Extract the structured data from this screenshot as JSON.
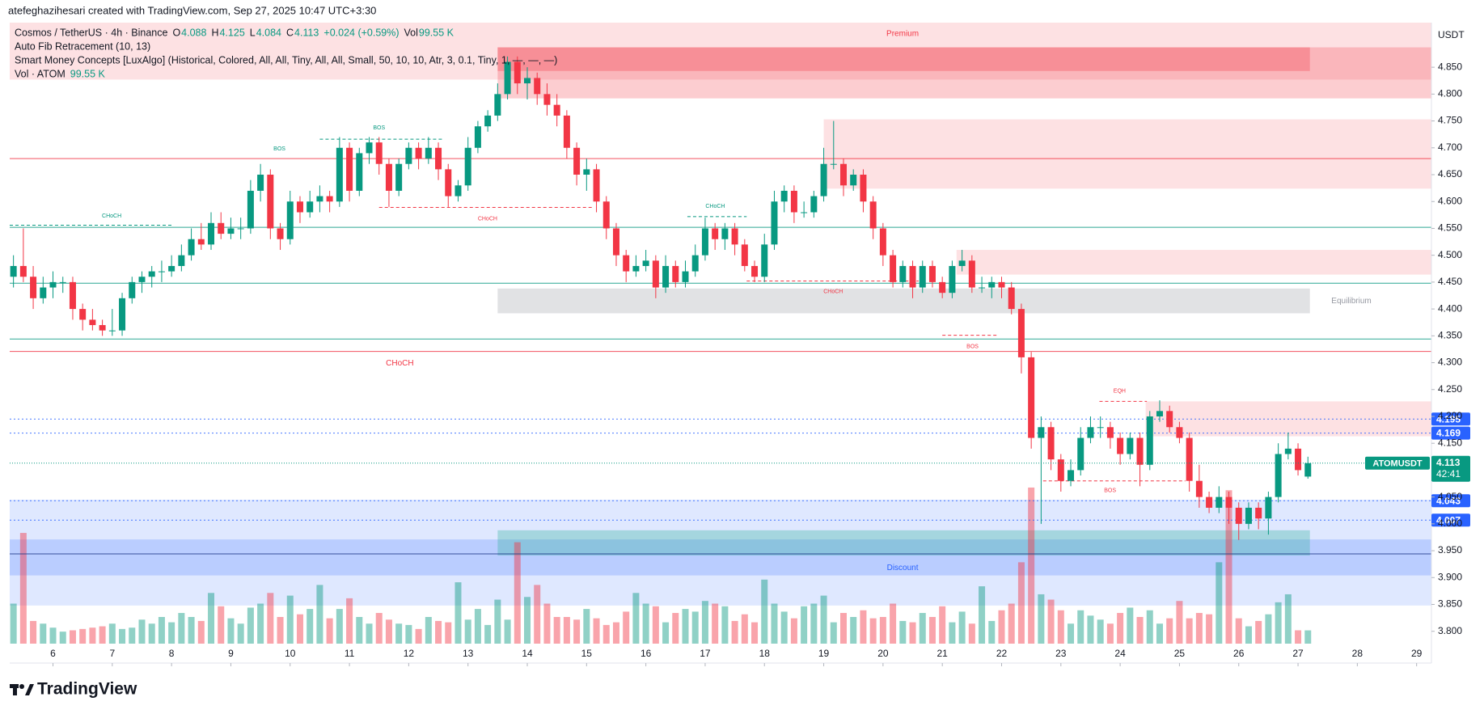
{
  "chart_data": {
    "type": "candlestick",
    "creator": "atefeghazihesari created with TradingView.com, Sep 27, 2025 10:47 UTC+3:30",
    "symbol_title": "Cosmos / TetherUS · 4h · Binance",
    "legend": {
      "o": "O",
      "h": "H",
      "l": "L",
      "c": "C",
      "change": "+0.024 (+0.59%)",
      "vol": "Vol",
      "vol_value": "99.55 K",
      "fib": "Auto Fib Retracement (10, 13)",
      "smc": "Smart Money Concepts [LuxAlgo] (Historical, Colored, All, All, Tiny, All, All, Small, 50, 10, 10, Atr, 3, 0.1, Tiny, 1, —, —, —)",
      "vol_title": "Vol · ATOM"
    },
    "currency": "USDT",
    "ticker": "ATOMUSDT",
    "countdown": "42:41",
    "brand": "TradingView",
    "up_color": "#089981",
    "down_color": "#f23645",
    "ohlc": [
      [
        4.46,
        4.5,
        4.44,
        4.48
      ],
      [
        4.48,
        4.55,
        4.45,
        4.46
      ],
      [
        4.46,
        4.48,
        4.4,
        4.42
      ],
      [
        4.42,
        4.46,
        4.41,
        4.44
      ],
      [
        4.44,
        4.47,
        4.42,
        4.45
      ],
      [
        4.45,
        4.46,
        4.43,
        4.45
      ],
      [
        4.45,
        4.46,
        4.38,
        4.4
      ],
      [
        4.4,
        4.41,
        4.36,
        4.38
      ],
      [
        4.38,
        4.4,
        4.36,
        4.37
      ],
      [
        4.37,
        4.38,
        4.35,
        4.36
      ],
      [
        4.36,
        4.4,
        4.35,
        4.36
      ],
      [
        4.36,
        4.43,
        4.35,
        4.42
      ],
      [
        4.42,
        4.46,
        4.41,
        4.45
      ],
      [
        4.45,
        4.47,
        4.43,
        4.46
      ],
      [
        4.46,
        4.48,
        4.44,
        4.47
      ],
      [
        4.47,
        4.49,
        4.45,
        4.47
      ],
      [
        4.47,
        4.5,
        4.46,
        4.48
      ],
      [
        4.48,
        4.52,
        4.47,
        4.5
      ],
      [
        4.5,
        4.55,
        4.49,
        4.53
      ],
      [
        4.53,
        4.56,
        4.51,
        4.52
      ],
      [
        4.52,
        4.58,
        4.51,
        4.56
      ],
      [
        4.56,
        4.58,
        4.53,
        4.54
      ],
      [
        4.54,
        4.57,
        4.53,
        4.55
      ],
      [
        4.55,
        4.57,
        4.53,
        4.55
      ],
      [
        4.55,
        4.64,
        4.54,
        4.62
      ],
      [
        4.62,
        4.67,
        4.6,
        4.65
      ],
      [
        4.65,
        4.66,
        4.53,
        4.55
      ],
      [
        4.55,
        4.56,
        4.51,
        4.53
      ],
      [
        4.53,
        4.62,
        4.52,
        4.6
      ],
      [
        4.6,
        4.61,
        4.56,
        4.58
      ],
      [
        4.58,
        4.62,
        4.57,
        4.6
      ],
      [
        4.6,
        4.63,
        4.58,
        4.61
      ],
      [
        4.61,
        4.62,
        4.58,
        4.6
      ],
      [
        4.6,
        4.72,
        4.59,
        4.7
      ],
      [
        4.7,
        4.71,
        4.6,
        4.62
      ],
      [
        4.62,
        4.7,
        4.61,
        4.69
      ],
      [
        4.69,
        4.72,
        4.67,
        4.71
      ],
      [
        4.71,
        4.72,
        4.65,
        4.67
      ],
      [
        4.67,
        4.68,
        4.59,
        4.62
      ],
      [
        4.62,
        4.68,
        4.61,
        4.67
      ],
      [
        4.67,
        4.71,
        4.66,
        4.7
      ],
      [
        4.7,
        4.71,
        4.66,
        4.68
      ],
      [
        4.68,
        4.72,
        4.67,
        4.7
      ],
      [
        4.7,
        4.71,
        4.64,
        4.66
      ],
      [
        4.66,
        4.67,
        4.59,
        4.61
      ],
      [
        4.61,
        4.64,
        4.6,
        4.63
      ],
      [
        4.63,
        4.72,
        4.62,
        4.7
      ],
      [
        4.7,
        4.75,
        4.69,
        4.74
      ],
      [
        4.74,
        4.77,
        4.73,
        4.76
      ],
      [
        4.76,
        4.82,
        4.75,
        4.8
      ],
      [
        4.8,
        4.87,
        4.79,
        4.86
      ],
      [
        4.86,
        4.87,
        4.8,
        4.82
      ],
      [
        4.82,
        4.85,
        4.79,
        4.83
      ],
      [
        4.83,
        4.84,
        4.78,
        4.8
      ],
      [
        4.8,
        4.82,
        4.76,
        4.78
      ],
      [
        4.78,
        4.8,
        4.74,
        4.76
      ],
      [
        4.76,
        4.77,
        4.68,
        4.7
      ],
      [
        4.7,
        4.71,
        4.63,
        4.65
      ],
      [
        4.65,
        4.68,
        4.62,
        4.66
      ],
      [
        4.66,
        4.67,
        4.58,
        4.6
      ],
      [
        4.6,
        4.61,
        4.53,
        4.55
      ],
      [
        4.55,
        4.56,
        4.48,
        4.5
      ],
      [
        4.5,
        4.51,
        4.45,
        4.47
      ],
      [
        4.47,
        4.5,
        4.46,
        4.48
      ],
      [
        4.48,
        4.51,
        4.47,
        4.49
      ],
      [
        4.49,
        4.5,
        4.42,
        4.44
      ],
      [
        4.44,
        4.5,
        4.43,
        4.48
      ],
      [
        4.48,
        4.49,
        4.44,
        4.45
      ],
      [
        4.45,
        4.49,
        4.44,
        4.47
      ],
      [
        4.47,
        4.52,
        4.46,
        4.5
      ],
      [
        4.5,
        4.57,
        4.49,
        4.55
      ],
      [
        4.55,
        4.56,
        4.51,
        4.53
      ],
      [
        4.53,
        4.56,
        4.51,
        4.55
      ],
      [
        4.55,
        4.56,
        4.5,
        4.52
      ],
      [
        4.52,
        4.53,
        4.47,
        4.48
      ],
      [
        4.48,
        4.49,
        4.45,
        4.46
      ],
      [
        4.46,
        4.54,
        4.45,
        4.52
      ],
      [
        4.52,
        4.62,
        4.51,
        4.6
      ],
      [
        4.6,
        4.63,
        4.58,
        4.62
      ],
      [
        4.62,
        4.63,
        4.56,
        4.58
      ],
      [
        4.58,
        4.6,
        4.57,
        4.58
      ],
      [
        4.58,
        4.62,
        4.57,
        4.61
      ],
      [
        4.61,
        4.7,
        4.6,
        4.67
      ],
      [
        4.67,
        4.75,
        4.66,
        4.67
      ],
      [
        4.67,
        4.68,
        4.61,
        4.63
      ],
      [
        4.63,
        4.66,
        4.62,
        4.65
      ],
      [
        4.65,
        4.66,
        4.58,
        4.6
      ],
      [
        4.6,
        4.61,
        4.53,
        4.55
      ],
      [
        4.55,
        4.56,
        4.48,
        4.5
      ],
      [
        4.5,
        4.51,
        4.44,
        4.45
      ],
      [
        4.45,
        4.49,
        4.44,
        4.48
      ],
      [
        4.48,
        4.49,
        4.42,
        4.44
      ],
      [
        4.44,
        4.49,
        4.43,
        4.48
      ],
      [
        4.48,
        4.49,
        4.44,
        4.45
      ],
      [
        4.45,
        4.46,
        4.42,
        4.43
      ],
      [
        4.43,
        4.49,
        4.42,
        4.48
      ],
      [
        4.48,
        4.51,
        4.47,
        4.49
      ],
      [
        4.49,
        4.5,
        4.43,
        4.44
      ],
      [
        4.44,
        4.46,
        4.43,
        4.44
      ],
      [
        4.44,
        4.46,
        4.42,
        4.45
      ],
      [
        4.45,
        4.46,
        4.42,
        4.44
      ],
      [
        4.44,
        4.45,
        4.39,
        4.4
      ],
      [
        4.4,
        4.41,
        4.28,
        4.31
      ],
      [
        4.31,
        4.32,
        4.14,
        4.16
      ],
      [
        4.16,
        4.2,
        4.0,
        4.18
      ],
      [
        4.18,
        4.19,
        4.1,
        4.12
      ],
      [
        4.12,
        4.13,
        4.06,
        4.08
      ],
      [
        4.08,
        4.12,
        4.07,
        4.1
      ],
      [
        4.1,
        4.18,
        4.09,
        4.16
      ],
      [
        4.16,
        4.2,
        4.15,
        4.18
      ],
      [
        4.18,
        4.2,
        4.16,
        4.18
      ],
      [
        4.18,
        4.19,
        4.14,
        4.16
      ],
      [
        4.16,
        4.17,
        4.11,
        4.13
      ],
      [
        4.13,
        4.17,
        4.12,
        4.16
      ],
      [
        4.16,
        4.17,
        4.07,
        4.11
      ],
      [
        4.11,
        4.21,
        4.1,
        4.2
      ],
      [
        4.2,
        4.23,
        4.19,
        4.21
      ],
      [
        4.21,
        4.22,
        4.17,
        4.18
      ],
      [
        4.18,
        4.19,
        4.15,
        4.16
      ],
      [
        4.16,
        4.17,
        4.06,
        4.08
      ],
      [
        4.08,
        4.11,
        4.03,
        4.05
      ],
      [
        4.05,
        4.06,
        4.02,
        4.03
      ],
      [
        4.03,
        4.07,
        4.02,
        4.05
      ],
      [
        4.05,
        4.06,
        4.0,
        4.03
      ],
      [
        4.03,
        4.04,
        3.97,
        4.0
      ],
      [
        4.0,
        4.04,
        3.99,
        4.03
      ],
      [
        4.03,
        4.04,
        3.99,
        4.01
      ],
      [
        4.01,
        4.06,
        3.98,
        4.05
      ],
      [
        4.05,
        4.15,
        4.04,
        4.13
      ],
      [
        4.13,
        4.17,
        4.12,
        4.14
      ],
      [
        4.14,
        4.15,
        4.09,
        4.1
      ],
      [
        4.088,
        4.125,
        4.084,
        4.113
      ]
    ],
    "volume": [
      300,
      830,
      170,
      150,
      120,
      90,
      100,
      110,
      120,
      130,
      150,
      110,
      120,
      180,
      150,
      200,
      160,
      230,
      200,
      170,
      380,
      280,
      190,
      150,
      270,
      300,
      380,
      200,
      360,
      220,
      260,
      440,
      190,
      260,
      340,
      200,
      150,
      230,
      180,
      150,
      140,
      110,
      200,
      170,
      160,
      460,
      180,
      260,
      140,
      330,
      180,
      760,
      350,
      440,
      300,
      200,
      200,
      180,
      260,
      190,
      140,
      160,
      240,
      380,
      300,
      280,
      160,
      230,
      260,
      240,
      320,
      300,
      280,
      170,
      220,
      160,
      480,
      300,
      240,
      190,
      280,
      300,
      360,
      160,
      230,
      200,
      250,
      190,
      200,
      300,
      170,
      160,
      230,
      200,
      280,
      160,
      240,
      150,
      430,
      170,
      250,
      300,
      610,
      1170,
      370,
      330,
      250,
      150,
      250,
      210,
      180,
      150,
      230,
      270,
      200,
      250,
      150,
      190,
      320,
      190,
      230,
      220,
      610,
      1150,
      190,
      130,
      170,
      220,
      310,
      370,
      100,
      99.55
    ],
    "xlim": [
      5.27,
      29.25
    ],
    "xticks": [
      6,
      7,
      8,
      9,
      10,
      11,
      12,
      13,
      14,
      15,
      16,
      17,
      18,
      19,
      20,
      21,
      22,
      23,
      24,
      25,
      26,
      27,
      28,
      29
    ],
    "ylim": [
      3.777,
      4.933
    ],
    "yticks": [
      {
        "value": 3.8,
        "label": "3.800"
      },
      {
        "value": 3.85,
        "label": "3.850"
      },
      {
        "value": 3.9,
        "label": "3.900"
      },
      {
        "value": 3.95,
        "label": "3.950"
      },
      {
        "value": 4.0,
        "label": "4.000"
      },
      {
        "value": 4.05,
        "label": "4.050"
      },
      {
        "value": 4.1,
        "label": "4.100"
      },
      {
        "value": 4.15,
        "label": "4.150"
      },
      {
        "value": 4.2,
        "label": "4.200"
      },
      {
        "value": 4.25,
        "label": "4.250"
      },
      {
        "value": 4.3,
        "label": "4.300"
      },
      {
        "value": 4.35,
        "label": "4.350"
      },
      {
        "value": 4.4,
        "label": "4.400"
      },
      {
        "value": 4.45,
        "label": "4.450"
      },
      {
        "value": 4.5,
        "label": "4.500"
      },
      {
        "value": 4.55,
        "label": "4.550"
      },
      {
        "value": 4.6,
        "label": "4.600"
      },
      {
        "value": 4.65,
        "label": "4.650"
      },
      {
        "value": 4.7,
        "label": "4.700"
      },
      {
        "value": 4.75,
        "label": "4.750"
      },
      {
        "value": 4.8,
        "label": "4.800"
      },
      {
        "value": 4.85,
        "label": "4.850"
      }
    ],
    "grid": false,
    "zones": [
      {
        "top": 4.933,
        "bottom": 4.827,
        "from": 5.27,
        "to": 29.25,
        "color": "rgba(242,54,69,0.15)"
      },
      {
        "top": 4.887,
        "bottom": 4.792,
        "from": 13.5,
        "to": 29.25,
        "color": "rgba(242,54,69,0.25)"
      },
      {
        "top": 4.887,
        "bottom": 4.843,
        "from": 13.5,
        "to": 27.2,
        "color": "rgba(242,54,69,0.3)"
      },
      {
        "top": 4.753,
        "bottom": 4.624,
        "from": 19.0,
        "to": 29.25,
        "color": "rgba(242,54,69,0.15)"
      },
      {
        "top": 4.51,
        "bottom": 4.464,
        "from": 21.24,
        "to": 29.25,
        "color": "rgba(242,54,69,0.15)"
      },
      {
        "top": 4.438,
        "bottom": 4.392,
        "from": 13.5,
        "to": 27.2,
        "color": "rgba(120,123,134,0.22)"
      },
      {
        "top": 4.228,
        "bottom": 4.163,
        "from": 24.43,
        "to": 29.25,
        "color": "rgba(242,54,69,0.15)"
      },
      {
        "top": 4.045,
        "bottom": 3.848,
        "from": 5.27,
        "to": 29.25,
        "color": "rgba(41,98,255,0.15)"
      },
      {
        "top": 3.971,
        "bottom": 3.904,
        "from": 5.27,
        "to": 29.25,
        "color": "rgba(41,98,255,0.2)"
      },
      {
        "top": 3.988,
        "bottom": 3.941,
        "from": 13.5,
        "to": 27.2,
        "color": "rgba(34,171,148,0.3)"
      }
    ],
    "levels": [
      {
        "price": 4.68,
        "color": "#f23645",
        "style": "solid"
      },
      {
        "price": 4.552,
        "color": "#089981",
        "style": "solid"
      },
      {
        "price": 4.448,
        "color": "#089981",
        "style": "solid"
      },
      {
        "price": 4.344,
        "color": "#089981",
        "style": "solid"
      },
      {
        "price": 4.321,
        "color": "#f23645",
        "style": "solid"
      },
      {
        "price": 4.195,
        "color": "#2962ff",
        "style": "dotted",
        "tag": true
      },
      {
        "price": 4.169,
        "color": "#2962ff",
        "style": "dotted",
        "tag": true
      },
      {
        "price": 4.043,
        "color": "#2962ff",
        "style": "dotted",
        "tag": true
      },
      {
        "price": 4.007,
        "color": "#2962ff",
        "style": "dotted",
        "tag": true
      },
      {
        "price": 3.944,
        "color": "#1e3a8a",
        "style": "solid"
      }
    ],
    "structure": [
      {
        "price": 4.556,
        "from": 5.27,
        "to": 8.0,
        "color": "#089981"
      },
      {
        "price": 4.716,
        "from": 10.5,
        "to": 12.6,
        "color": "#089981"
      },
      {
        "price": 4.589,
        "from": 11.5,
        "to": 15.1,
        "color": "#f23645"
      },
      {
        "price": 4.572,
        "from": 16.7,
        "to": 17.7,
        "color": "#089981"
      },
      {
        "price": 4.452,
        "from": 17.7,
        "to": 20.6,
        "color": "#f23645"
      },
      {
        "price": 4.351,
        "from": 21.0,
        "to": 21.95,
        "color": "#f23645"
      },
      {
        "price": 4.08,
        "from": 22.7,
        "to": 25.1,
        "color": "#f23645"
      },
      {
        "price": 4.228,
        "from": 23.65,
        "to": 24.45,
        "color": "#f23645"
      }
    ],
    "annotations": [
      {
        "text": "BOS",
        "x": 9.82,
        "y": 4.698,
        "color": "#089981",
        "size": 7
      },
      {
        "text": "BOS",
        "x": 11.5,
        "y": 4.737,
        "color": "#089981",
        "size": 7
      },
      {
        "text": "CHoCH",
        "x": 6.99,
        "y": 4.573,
        "color": "#089981",
        "size": 7
      },
      {
        "text": "CHoCH",
        "x": 13.33,
        "y": 4.568,
        "color": "#f23645",
        "size": 7
      },
      {
        "text": "CHoCH",
        "x": 17.17,
        "y": 4.591,
        "color": "#089981",
        "size": 7
      },
      {
        "text": "CHoCH",
        "x": 19.16,
        "y": 4.432,
        "color": "#f23645",
        "size": 7
      },
      {
        "text": "BOS",
        "x": 21.51,
        "y": 4.33,
        "color": "#f23645",
        "size": 7
      },
      {
        "text": "CHoCH",
        "x": 11.85,
        "y": 4.299,
        "color": "#f23645",
        "size": 10
      },
      {
        "text": "EQH",
        "x": 23.99,
        "y": 4.247,
        "color": "#f23645",
        "size": 7
      },
      {
        "text": "BOS",
        "x": 23.83,
        "y": 4.062,
        "color": "#f23645",
        "size": 7
      },
      {
        "text": "Premium",
        "x": 20.33,
        "y": 4.912,
        "color": "#f23645",
        "size": 10
      },
      {
        "text": "Equilibrium",
        "x": 27.9,
        "y": 4.415,
        "color": "#9598a1",
        "size": 10
      },
      {
        "text": "Discount",
        "x": 20.33,
        "y": 3.918,
        "color": "#2962ff",
        "size": 10
      }
    ]
  }
}
